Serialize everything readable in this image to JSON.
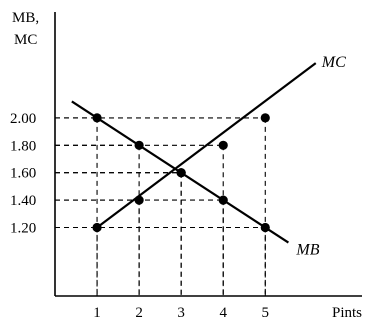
{
  "chart_data": {
    "type": "line",
    "ylabel_lines": [
      "MB,",
      "MC"
    ],
    "xlabel": "Pints",
    "x": [
      1,
      2,
      3,
      4,
      5
    ],
    "x_tick_labels": [
      "1",
      "2",
      "3",
      "4",
      "5"
    ],
    "y_tick_values": [
      1.2,
      1.4,
      1.6,
      1.8,
      2.0
    ],
    "y_tick_labels": [
      "1.20",
      "1.40",
      "1.60",
      "1.80",
      "2.00"
    ],
    "xlim": [
      0,
      7.3
    ],
    "ylim": [
      0.7,
      2.7
    ],
    "grid": false,
    "legend": "none",
    "series": [
      {
        "name": "MC",
        "points": [
          [
            1,
            1.2
          ],
          [
            2,
            1.4
          ],
          [
            3,
            1.6
          ],
          [
            4,
            1.8
          ],
          [
            5,
            2.0
          ]
        ],
        "line_extent": [
          [
            1,
            1.2
          ],
          [
            6.2,
            2.4
          ]
        ]
      },
      {
        "name": "MB",
        "points": [
          [
            1,
            2.0
          ],
          [
            2,
            1.8
          ],
          [
            3,
            1.6
          ],
          [
            4,
            1.4
          ],
          [
            5,
            1.2
          ]
        ],
        "line_extent": [
          [
            0.4,
            2.12
          ],
          [
            5.55,
            1.09
          ]
        ]
      }
    ]
  }
}
